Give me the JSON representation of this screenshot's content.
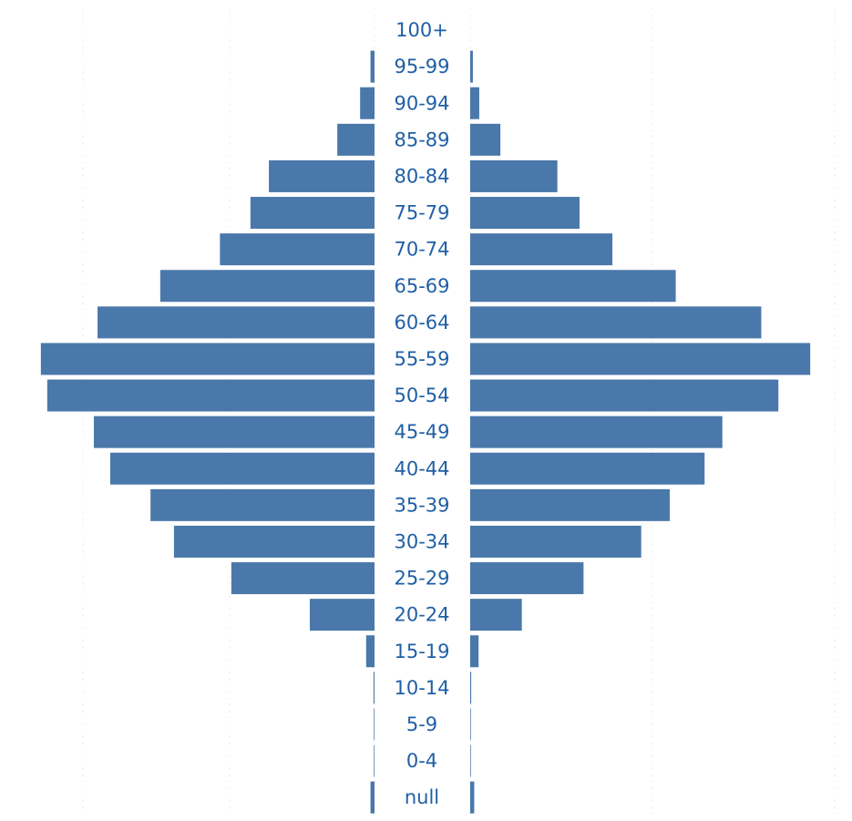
{
  "chart_data": {
    "type": "bar",
    "title": "",
    "xlabel": "",
    "ylabel": "",
    "orientation": "horizontal-mirrored",
    "bar_color": "#4a78aa",
    "label_color": "#1f5fa6",
    "grid": true,
    "legend": "none",
    "xlim": [
      0,
      100
    ],
    "categories": [
      "100+",
      "95-99",
      "90-94",
      "85-89",
      "80-84",
      "75-79",
      "70-74",
      "65-69",
      "60-64",
      "55-59",
      "50-54",
      "45-49",
      "40-44",
      "35-39",
      "30-34",
      "25-29",
      "20-24",
      "15-19",
      "10-14",
      "5-9",
      "0-4",
      "null"
    ],
    "series": [
      {
        "side": "left",
        "values": [
          0,
          1.2,
          4.3,
          11.1,
          31.5,
          37.0,
          46.1,
          63.9,
          82.6,
          99.5,
          97.6,
          83.7,
          78.8,
          66.8,
          59.8,
          42.7,
          19.3,
          2.5,
          0.3,
          0.2,
          0.2,
          1.2
        ]
      },
      {
        "side": "right",
        "values": [
          0,
          0.8,
          2.7,
          9.0,
          26.0,
          32.6,
          42.4,
          61.3,
          86.8,
          101.4,
          91.9,
          75.2,
          69.9,
          59.5,
          51.0,
          33.8,
          15.4,
          2.5,
          0.3,
          0.2,
          0.2,
          1.2
        ]
      }
    ]
  }
}
